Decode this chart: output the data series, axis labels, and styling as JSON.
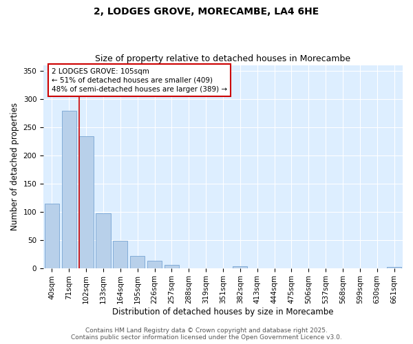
{
  "title_line1": "2, LODGES GROVE, MORECAMBE, LA4 6HE",
  "title_line2": "Size of property relative to detached houses in Morecambe",
  "xlabel": "Distribution of detached houses by size in Morecambe",
  "ylabel": "Number of detached properties",
  "categories": [
    "40sqm",
    "71sqm",
    "102sqm",
    "133sqm",
    "164sqm",
    "195sqm",
    "226sqm",
    "257sqm",
    "288sqm",
    "319sqm",
    "351sqm",
    "382sqm",
    "413sqm",
    "444sqm",
    "475sqm",
    "506sqm",
    "537sqm",
    "568sqm",
    "599sqm",
    "630sqm",
    "661sqm"
  ],
  "values": [
    114,
    279,
    234,
    97,
    48,
    21,
    13,
    5,
    0,
    0,
    0,
    3,
    0,
    0,
    0,
    0,
    0,
    0,
    0,
    0,
    2
  ],
  "bar_color": "#b8d0ea",
  "bar_edge_color": "#6699cc",
  "vline_x": 2,
  "vline_color": "#cc0000",
  "annotation_text": "2 LODGES GROVE: 105sqm\n← 51% of detached houses are smaller (409)\n48% of semi-detached houses are larger (389) →",
  "annotation_box_color": "#ffffff",
  "annotation_box_edge_color": "#cc0000",
  "ylim": [
    0,
    360
  ],
  "yticks": [
    0,
    50,
    100,
    150,
    200,
    250,
    300,
    350
  ],
  "footer_line1": "Contains HM Land Registry data © Crown copyright and database right 2025.",
  "footer_line2": "Contains public sector information licensed under the Open Government Licence v3.0.",
  "fig_bg_color": "#ffffff",
  "plot_bg_color": "#ddeeff",
  "grid_color": "#ffffff",
  "title_fontsize": 10,
  "subtitle_fontsize": 9,
  "axis_label_fontsize": 8.5,
  "tick_fontsize": 7.5,
  "annotation_fontsize": 7.5,
  "footer_fontsize": 6.5
}
